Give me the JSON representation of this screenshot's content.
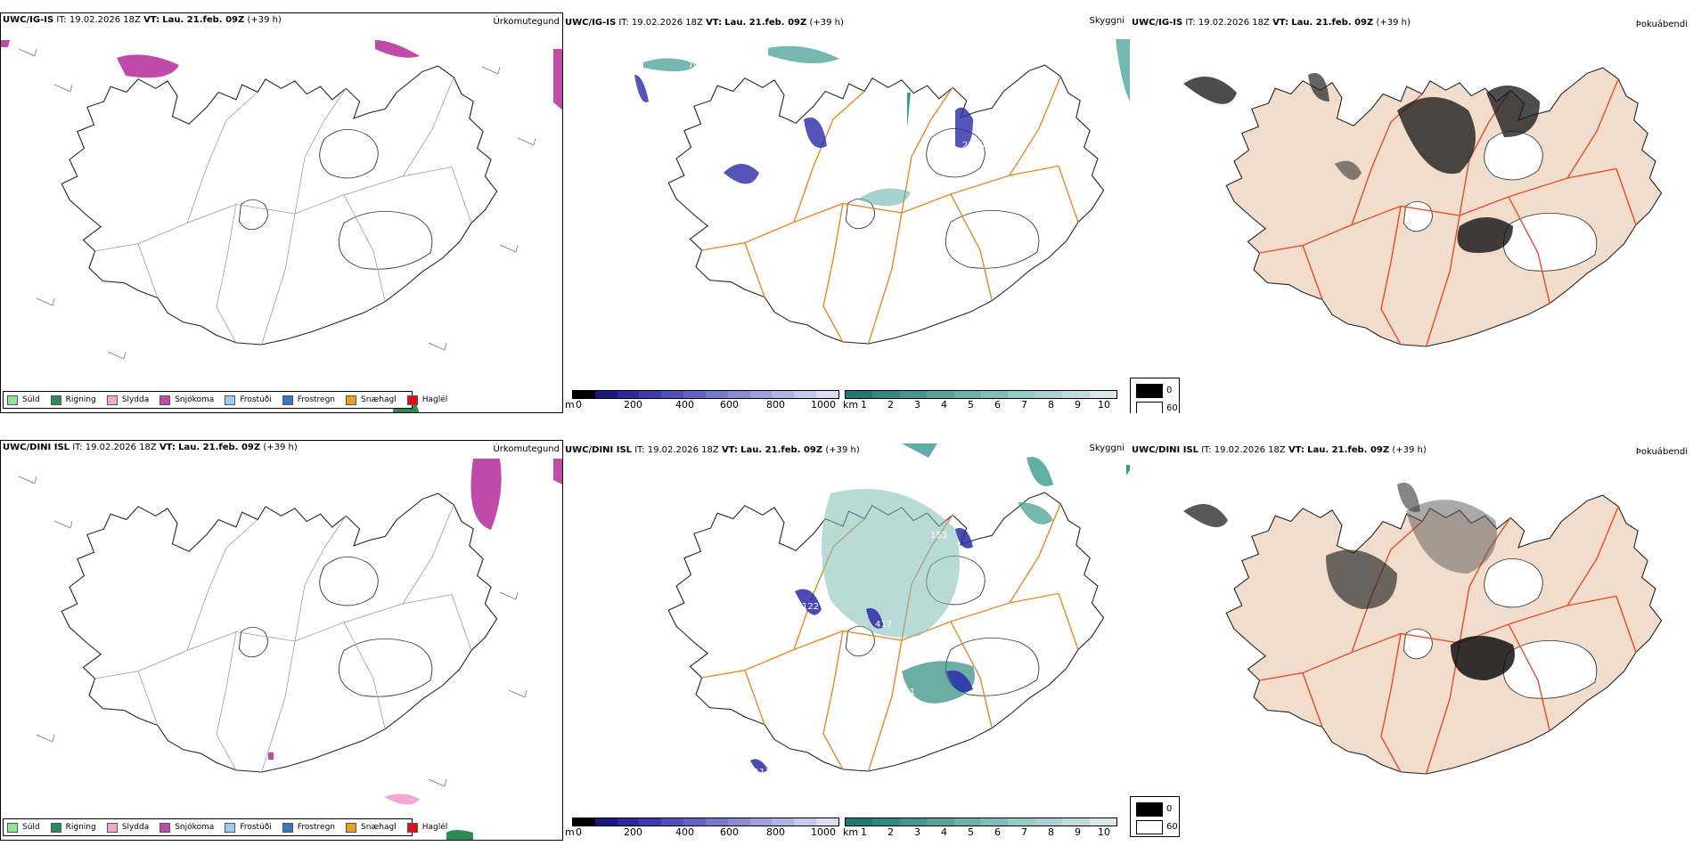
{
  "rows": [
    {
      "model": "UWC/IG-IS",
      "it_label": "IT:",
      "it_value": "19.02.2026 18Z",
      "vt_label": "VT:",
      "vt_value": "Lau. 21.feb. 09Z",
      "lead": "(+39 h)"
    },
    {
      "model": "UWC/DINI ISL",
      "it_label": "IT:",
      "it_value": "19.02.2026 18Z",
      "vt_label": "VT:",
      "vt_value": "Lau. 21.feb. 09Z",
      "lead": "(+39 h)"
    }
  ],
  "panel_titles": {
    "precip": "Úrkomutegund",
    "cloud": "Skyggni",
    "fog": "Þokuábendi"
  },
  "precip_legend": [
    {
      "label": "Súld",
      "color": "#8fe88f"
    },
    {
      "label": "Rigning",
      "color": "#2e8b57"
    },
    {
      "label": "Slydda",
      "color": "#f4a6d8"
    },
    {
      "label": "Snjókoma",
      "color": "#c04aa8"
    },
    {
      "label": "Frostúði",
      "color": "#9ec9f0"
    },
    {
      "label": "Frostregn",
      "color": "#3a78c4"
    },
    {
      "label": "Snæhagl",
      "color": "#f0a020"
    },
    {
      "label": "Haglél",
      "color": "#e01010"
    }
  ],
  "ceiling_bar": {
    "unit": "m",
    "ticks": [
      "0",
      "200",
      "400",
      "600",
      "800",
      "1000"
    ],
    "colors": [
      "#000000",
      "#1a1a7a",
      "#2b2b9b",
      "#3b3bb0",
      "#5050bb",
      "#6464c4",
      "#7878cc",
      "#8c8cd4",
      "#a0a0dc",
      "#b4b4e4",
      "#c8c8ec",
      "#dcdcf4"
    ]
  },
  "visibility_bar": {
    "unit": "km",
    "ticks": [
      "1",
      "2",
      "3",
      "4",
      "5",
      "6",
      "7",
      "8",
      "9",
      "10"
    ],
    "colors": [
      "#1e7a70",
      "#2e8a80",
      "#409890",
      "#55a59d",
      "#6ab2aa",
      "#80beb7",
      "#96cac4",
      "#accfd1",
      "#c2dcdc",
      "#d8e9e8"
    ]
  },
  "fog_key": {
    "high": "0",
    "low": "60"
  },
  "cloud_labels_top": [
    "2120",
    "14",
    "703"
  ],
  "cloud_labels_bottom": [
    "122",
    "153",
    "417",
    "191",
    "111",
    "17"
  ],
  "colors": {
    "snow": "#c04aa8",
    "sleet": "#f4a6d8",
    "rain": "#2e8b57",
    "roads": "#e8892a",
    "teal": "#3a9a90",
    "lowcloud": "#2b2ba8",
    "land": "#f2dccb",
    "fogroad": "#e05030"
  }
}
